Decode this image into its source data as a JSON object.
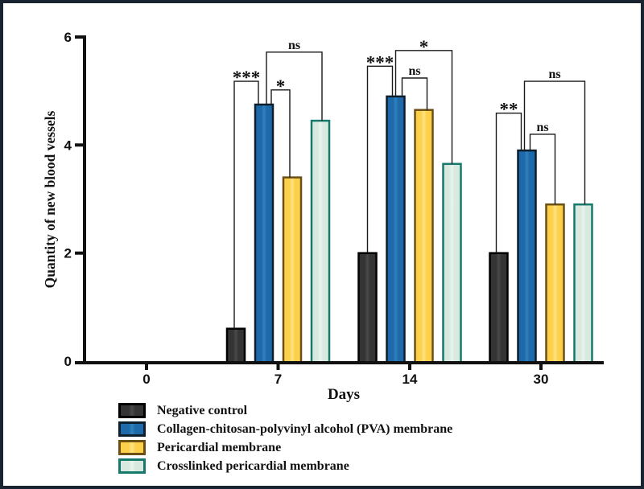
{
  "figure": {
    "border_color": "#18242f",
    "background": "#ffffff"
  },
  "chart_data": {
    "type": "bar",
    "title": "",
    "xlabel": "Days",
    "ylabel": "Quantity of new blood vessels",
    "categories": [
      "0",
      "7",
      "14",
      "30"
    ],
    "yticks": [
      0,
      2,
      4,
      6
    ],
    "ylim": [
      0,
      6
    ],
    "grid": false,
    "legend_position": "bottom-left",
    "series": [
      {
        "name": "Negative control",
        "fill": "#343434",
        "fill_light": "#4a4a4a",
        "border": "#000000",
        "values": [
          0,
          0.6,
          2.0,
          2.0
        ]
      },
      {
        "name": "Collagen-chitosan-polyvinyl alcohol (PVA) membrane",
        "fill": "#1d69a9",
        "fill_light": "#3181bd",
        "border": "#0d1f2d",
        "values": [
          0,
          4.75,
          4.9,
          3.9
        ]
      },
      {
        "name": "Pericardial membrane",
        "fill": "#fdd04b",
        "fill_light": "#fee487",
        "border": "#6b4f15",
        "values": [
          0,
          3.4,
          4.65,
          2.9
        ]
      },
      {
        "name": "Crosslinked pericardial membrane",
        "fill": "#d8eadf",
        "fill_light": "#eaf4ee",
        "border": "#17786c",
        "values": [
          0,
          4.45,
          3.65,
          2.9
        ]
      }
    ],
    "significance": [
      {
        "group": 1,
        "a": 0,
        "b": 1,
        "label": "***",
        "top": 5.18,
        "dx1": -2,
        "dx2": -7
      },
      {
        "group": 1,
        "a": 1,
        "b": 2,
        "label": "*",
        "top": 5.02,
        "dx1": 9,
        "dx2": -3
      },
      {
        "group": 1,
        "a": 1,
        "b": 3,
        "label": "ns",
        "top": 5.72,
        "dx1": 3,
        "dx2": 2
      },
      {
        "group": 2,
        "a": 0,
        "b": 1,
        "label": "***",
        "top": 5.46,
        "dx1": 0,
        "dx2": -4
      },
      {
        "group": 2,
        "a": 1,
        "b": 2,
        "label": "ns",
        "top": 5.24,
        "dx1": 8,
        "dx2": 4
      },
      {
        "group": 2,
        "a": 1,
        "b": 3,
        "label": "*",
        "top": 5.75,
        "dx1": 0,
        "dx2": 0
      },
      {
        "group": 3,
        "a": 0,
        "b": 1,
        "label": "**",
        "top": 4.59,
        "dx1": -3,
        "dx2": -7
      },
      {
        "group": 3,
        "a": 1,
        "b": 2,
        "label": "ns",
        "top": 4.2,
        "dx1": 4,
        "dx2": 0
      },
      {
        "group": 3,
        "a": 1,
        "b": 3,
        "label": "ns",
        "top": 5.18,
        "dx1": -3,
        "dx2": 2
      }
    ]
  }
}
